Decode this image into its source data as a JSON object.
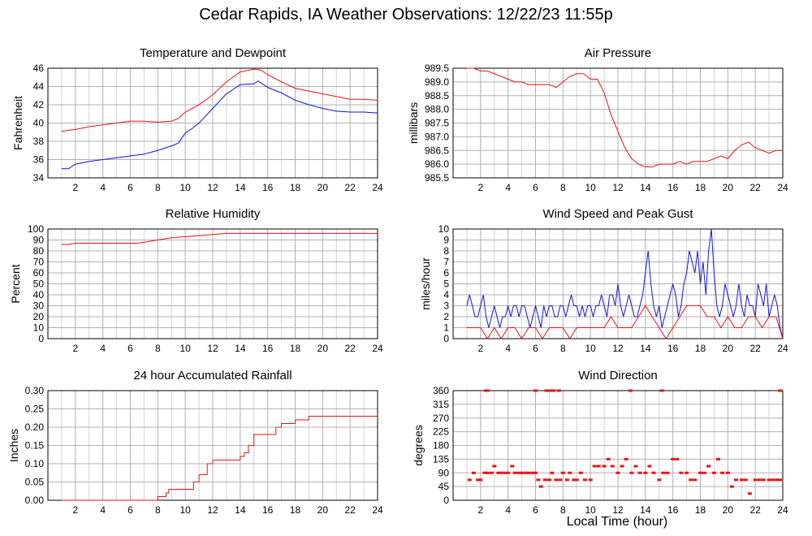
{
  "page": {
    "title": "Cedar Rapids, IA Weather Observations: 12/22/23 11:55p",
    "x_axis_label": "Local Time (hour)"
  },
  "colors": {
    "red": "#ee1111",
    "blue": "#1111dd",
    "grid": "#b0b0b0",
    "frame": "#000000"
  },
  "chart_data": [
    {
      "id": "temp",
      "type": "line",
      "title": "Temperature and Dewpoint",
      "xlabel": "",
      "ylabel": "Fahrenheit",
      "xlim": [
        0,
        24
      ],
      "ylim": [
        34,
        46
      ],
      "xticks": [
        2,
        4,
        6,
        8,
        10,
        12,
        14,
        16,
        18,
        20,
        22,
        24
      ],
      "yticks": [
        34,
        36,
        38,
        40,
        42,
        44,
        46
      ],
      "grid": true,
      "series": [
        {
          "color": "red",
          "style": "line",
          "x": [
            1,
            2,
            3,
            4,
            5,
            6,
            7,
            8,
            9,
            9.5,
            10,
            10.5,
            11,
            12,
            13,
            14,
            15,
            15.5,
            16,
            17,
            18,
            19,
            20,
            21,
            22,
            23,
            24
          ],
          "y": [
            39.1,
            39.3,
            39.6,
            39.8,
            40.0,
            40.2,
            40.2,
            40.1,
            40.2,
            40.5,
            41.2,
            41.6,
            42.0,
            43.1,
            44.5,
            45.6,
            45.9,
            45.8,
            45.3,
            44.5,
            43.8,
            43.5,
            43.2,
            42.9,
            42.6,
            42.6,
            42.5
          ]
        },
        {
          "color": "blue",
          "style": "line",
          "x": [
            1,
            1.5,
            2,
            3,
            4,
            5,
            6,
            7,
            8,
            9,
            9.5,
            10,
            10.5,
            11,
            12,
            13,
            14,
            15,
            15.3,
            16,
            17,
            18,
            19,
            20,
            21,
            22,
            23,
            24
          ],
          "y": [
            35.0,
            35.0,
            35.5,
            35.8,
            36.0,
            36.2,
            36.4,
            36.6,
            37.0,
            37.5,
            37.8,
            38.9,
            39.4,
            40.0,
            41.6,
            43.2,
            44.2,
            44.3,
            44.6,
            43.9,
            43.3,
            42.5,
            42.0,
            41.6,
            41.3,
            41.2,
            41.2,
            41.1
          ]
        }
      ]
    },
    {
      "id": "pressure",
      "type": "line",
      "title": "Air Pressure",
      "xlabel": "",
      "ylabel": "millibars",
      "xlim": [
        0,
        24
      ],
      "ylim": [
        985.5,
        989.5
      ],
      "xticks": [
        2,
        4,
        6,
        8,
        10,
        12,
        14,
        16,
        18,
        20,
        22,
        24
      ],
      "yticks": [
        985.5,
        986.0,
        986.5,
        987.0,
        987.5,
        988.0,
        988.5,
        989.0,
        989.5
      ],
      "grid": true,
      "series": [
        {
          "color": "red",
          "style": "line",
          "x": [
            1,
            1.5,
            2,
            2.5,
            3,
            3.5,
            4,
            4.5,
            5,
            5.5,
            6,
            6.5,
            7,
            7.5,
            8,
            8.5,
            9,
            9.5,
            10,
            10.5,
            11,
            11.5,
            12,
            12.5,
            13,
            13.5,
            14,
            14.5,
            15,
            15.5,
            16,
            16.5,
            17,
            17.5,
            18,
            18.5,
            19,
            19.5,
            20,
            20.5,
            21,
            21.5,
            22,
            22.5,
            23,
            23.5,
            24
          ],
          "y": [
            989.5,
            989.5,
            989.4,
            989.4,
            989.3,
            989.2,
            989.1,
            989.0,
            989.0,
            988.9,
            988.9,
            988.9,
            988.9,
            988.8,
            989.0,
            989.2,
            989.3,
            989.3,
            989.1,
            989.1,
            988.6,
            987.8,
            987.2,
            986.6,
            986.2,
            986.0,
            985.9,
            985.9,
            986.0,
            986.0,
            986.0,
            986.1,
            986.0,
            986.1,
            986.1,
            986.1,
            986.2,
            986.3,
            986.2,
            986.5,
            986.7,
            986.8,
            986.6,
            986.5,
            986.4,
            986.5,
            986.5
          ]
        }
      ]
    },
    {
      "id": "humidity",
      "type": "line",
      "title": "Relative Humidity",
      "xlabel": "",
      "ylabel": "Percent",
      "xlim": [
        0,
        24
      ],
      "ylim": [
        0,
        100
      ],
      "xticks": [
        2,
        4,
        6,
        8,
        10,
        12,
        14,
        16,
        18,
        20,
        22,
        24
      ],
      "yticks": [
        0,
        10,
        20,
        30,
        40,
        50,
        60,
        70,
        80,
        90,
        100
      ],
      "grid": true,
      "series": [
        {
          "color": "red",
          "style": "line",
          "x": [
            1,
            1.5,
            2,
            3,
            4,
            5,
            6,
            6.5,
            7,
            8,
            9,
            10,
            11,
            12,
            13,
            14,
            15,
            16,
            18,
            20,
            22,
            24
          ],
          "y": [
            86,
            86,
            87,
            87,
            87,
            87,
            87,
            87,
            88,
            90,
            92,
            93,
            94,
            95,
            96,
            96,
            96,
            96,
            96,
            96,
            96,
            96
          ]
        }
      ]
    },
    {
      "id": "wind",
      "type": "line",
      "title": "Wind Speed and Peak Gust",
      "xlabel": "",
      "ylabel": "miles/hour",
      "xlim": [
        0,
        24
      ],
      "ylim": [
        0,
        10
      ],
      "xticks": [
        2,
        4,
        6,
        8,
        10,
        12,
        14,
        16,
        18,
        20,
        22,
        24
      ],
      "yticks": [
        0,
        1,
        2,
        3,
        4,
        5,
        6,
        7,
        8,
        9,
        10
      ],
      "grid": true,
      "series": [
        {
          "color": "blue",
          "style": "line",
          "x": [
            1,
            1.2,
            1.4,
            1.6,
            1.8,
            2.0,
            2.2,
            2.4,
            2.6,
            2.8,
            3.0,
            3.2,
            3.4,
            3.6,
            3.8,
            4.0,
            4.2,
            4.4,
            4.6,
            4.8,
            5.0,
            5.2,
            5.4,
            5.6,
            5.8,
            6.0,
            6.2,
            6.4,
            6.6,
            6.8,
            7.0,
            7.2,
            7.4,
            7.6,
            7.8,
            8.0,
            8.2,
            8.4,
            8.6,
            8.8,
            9.0,
            9.2,
            9.4,
            9.6,
            9.8,
            10.0,
            10.2,
            10.4,
            10.6,
            10.8,
            11.0,
            11.2,
            11.4,
            11.6,
            11.8,
            12.0,
            12.2,
            12.4,
            12.6,
            12.8,
            13.0,
            13.2,
            13.4,
            13.6,
            13.8,
            14.0,
            14.2,
            14.4,
            14.6,
            14.8,
            15.0,
            15.2,
            15.4,
            15.6,
            15.8,
            16.0,
            16.2,
            16.4,
            16.6,
            16.8,
            17.0,
            17.2,
            17.4,
            17.6,
            17.8,
            18.0,
            18.2,
            18.4,
            18.6,
            18.8,
            19.0,
            19.2,
            19.4,
            19.6,
            19.8,
            20.0,
            20.2,
            20.4,
            20.6,
            20.8,
            21.0,
            21.2,
            21.4,
            21.6,
            21.8,
            22.0,
            22.2,
            22.4,
            22.6,
            22.8,
            23.0,
            23.2,
            23.4,
            23.6,
            23.8,
            24.0
          ],
          "y": [
            3,
            4,
            3,
            2,
            2,
            3,
            4,
            2,
            1,
            2,
            3,
            2,
            1,
            2,
            2,
            3,
            2,
            3,
            3,
            2,
            3,
            3,
            2,
            1,
            2,
            3,
            2,
            1,
            3,
            2,
            3,
            3,
            2,
            2,
            3,
            3,
            2,
            3,
            4,
            3,
            3,
            2,
            3,
            2,
            3,
            3,
            2,
            3,
            3,
            4,
            3,
            2,
            4,
            4,
            3,
            5,
            3,
            2,
            3,
            4,
            3,
            2,
            2,
            3,
            4,
            6,
            8,
            5,
            3,
            2,
            3,
            1,
            2,
            3,
            4,
            5,
            4,
            2,
            3,
            5,
            6,
            8,
            7,
            6,
            8,
            5,
            7,
            4,
            8,
            10,
            6,
            3,
            2,
            3,
            5,
            4,
            3,
            2,
            3,
            5,
            3,
            2,
            4,
            3,
            3,
            2,
            5,
            4,
            3,
            5,
            2,
            3,
            4,
            3,
            1,
            0
          ]
        },
        {
          "color": "red",
          "style": "line",
          "x": [
            1,
            1.5,
            2,
            2.5,
            3,
            3.5,
            4,
            4.5,
            5,
            5.5,
            6,
            6.5,
            7,
            7.5,
            8,
            8.5,
            9,
            9.5,
            10,
            10.5,
            11,
            11.5,
            12,
            12.5,
            13,
            13.5,
            14,
            14.5,
            15,
            15.5,
            16,
            16.5,
            17,
            17.5,
            18,
            18.5,
            19,
            19.5,
            20,
            20.5,
            21,
            21.5,
            22,
            22.5,
            23,
            23.5,
            24
          ],
          "y": [
            1,
            1,
            1,
            0,
            1,
            0,
            1,
            1,
            0,
            1,
            1,
            0,
            1,
            1,
            1,
            0,
            1,
            1,
            1,
            1,
            1,
            2,
            1,
            1,
            1,
            2,
            3,
            2,
            1,
            0,
            1,
            2,
            3,
            3,
            3,
            2,
            2,
            1,
            2,
            1,
            1,
            2,
            2,
            1,
            2,
            2,
            0
          ]
        }
      ]
    },
    {
      "id": "rain",
      "type": "line",
      "title": "24 hour Accumulated Rainfall",
      "xlabel": "",
      "ylabel": "Inches",
      "xlim": [
        0,
        24
      ],
      "ylim": [
        0,
        0.3
      ],
      "xticks": [
        2,
        4,
        6,
        8,
        10,
        12,
        14,
        16,
        18,
        20,
        22,
        24
      ],
      "yticks": [
        0,
        0.05,
        0.1,
        0.15,
        0.2,
        0.25,
        0.3
      ],
      "grid": true,
      "series": [
        {
          "color": "red",
          "style": "line",
          "x": [
            1,
            7.9,
            8.0,
            8.4,
            8.6,
            8.8,
            10.0,
            10.6,
            11.0,
            11.6,
            12.0,
            13.6,
            14.0,
            14.3,
            14.6,
            15.0,
            16.0,
            16.6,
            17.0,
            17.6,
            18.0,
            19.0,
            24.0
          ],
          "y": [
            0,
            0,
            0.01,
            0.01,
            0.02,
            0.03,
            0.03,
            0.05,
            0.07,
            0.1,
            0.11,
            0.11,
            0.12,
            0.13,
            0.15,
            0.18,
            0.18,
            0.2,
            0.21,
            0.21,
            0.22,
            0.23,
            0.23
          ]
        }
      ]
    },
    {
      "id": "direction",
      "type": "scatter",
      "title": "Wind Direction",
      "xlabel": "",
      "ylabel": "degrees",
      "xlim": [
        0,
        24
      ],
      "ylim": [
        0,
        360
      ],
      "xticks": [
        2,
        4,
        6,
        8,
        10,
        12,
        14,
        16,
        18,
        20,
        22,
        24
      ],
      "yticks": [
        0,
        45,
        90,
        135,
        180,
        225,
        270,
        315,
        360
      ],
      "grid": true,
      "series": [
        {
          "color": "red",
          "style": "points",
          "x": [
            1.2,
            1.5,
            1.8,
            2.0,
            2.3,
            2.5,
            2.8,
            3.0,
            3.3,
            3.5,
            3.8,
            4.0,
            4.3,
            4.5,
            4.8,
            5.0,
            5.3,
            5.5,
            5.8,
            6.0,
            6.2,
            6.4,
            6.7,
            7.0,
            7.2,
            7.5,
            7.8,
            8.0,
            8.3,
            8.5,
            8.8,
            9.0,
            9.3,
            9.6,
            10.0,
            10.3,
            10.6,
            11.0,
            11.3,
            11.6,
            12.0,
            12.3,
            12.6,
            13.0,
            13.3,
            13.6,
            14.0,
            14.3,
            14.6,
            15.0,
            15.3,
            15.6,
            16.0,
            16.3,
            16.6,
            17.0,
            17.3,
            17.6,
            18.0,
            18.3,
            18.6,
            19.0,
            19.3,
            19.6,
            20.0,
            20.3,
            20.6,
            21.0,
            21.3,
            21.6,
            22.0,
            22.3,
            22.6,
            23.0,
            23.3,
            23.6,
            23.8,
            2.4,
            2.5,
            6.0,
            6.8,
            7.0,
            7.3,
            7.7,
            12.9,
            15.2,
            23.8
          ],
          "y": [
            67,
            90,
            67,
            67,
            90,
            90,
            90,
            112,
            90,
            90,
            90,
            90,
            112,
            90,
            90,
            90,
            90,
            90,
            90,
            90,
            67,
            45,
            67,
            67,
            90,
            67,
            67,
            90,
            67,
            90,
            67,
            67,
            90,
            67,
            67,
            112,
            112,
            112,
            135,
            112,
            90,
            112,
            135,
            90,
            112,
            90,
            90,
            112,
            90,
            67,
            90,
            90,
            135,
            135,
            90,
            90,
            67,
            67,
            90,
            90,
            112,
            90,
            135,
            90,
            90,
            45,
            67,
            67,
            67,
            22,
            67,
            67,
            67,
            67,
            67,
            67,
            67,
            360,
            360,
            360,
            360,
            360,
            360,
            360,
            360,
            360,
            360
          ]
        }
      ]
    }
  ]
}
